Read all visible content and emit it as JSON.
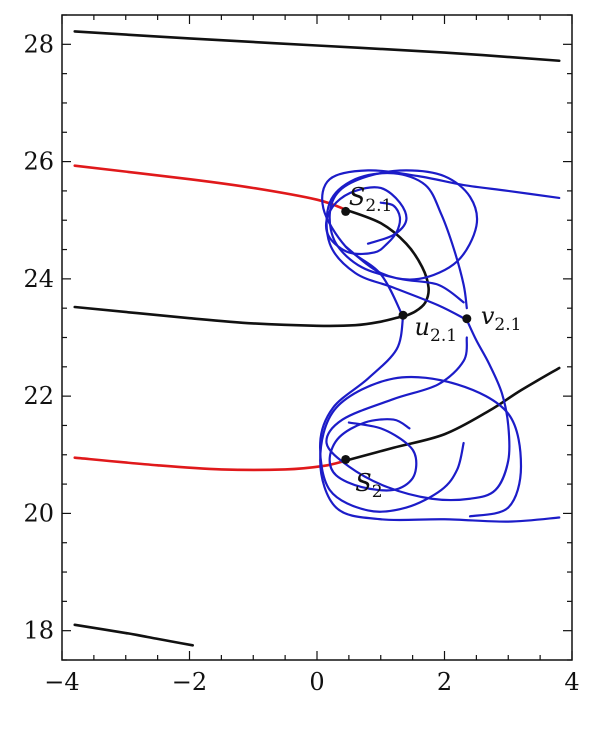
{
  "chart_data": {
    "type": "line",
    "title": "",
    "xlabel": "",
    "ylabel": "",
    "xlim": [
      -4,
      4
    ],
    "ylim": [
      17.5,
      28.5
    ],
    "xticks": [
      -4,
      -2,
      0,
      2,
      4
    ],
    "xtick_labels": [
      "−4",
      "−2",
      "0",
      "2",
      "4"
    ],
    "yticks": [
      18,
      20,
      22,
      24,
      26,
      28
    ],
    "ytick_labels": [
      "18",
      "20",
      "22",
      "24",
      "26",
      "28"
    ],
    "minor_ticks": true,
    "grid": false,
    "legend": "none",
    "colors": {
      "black": "#111111",
      "red": "#e0191b",
      "blue": "#1c1cc8"
    },
    "series": [
      {
        "color": "black",
        "x": [
          -3.8,
          -2,
          0,
          2,
          3.8
        ],
        "y": [
          28.22,
          28.1,
          27.98,
          27.86,
          27.72
        ]
      },
      {
        "color": "black",
        "x": [
          -3.8,
          -3,
          -2.5,
          -2.3,
          -1.95
        ],
        "y": [
          18.1,
          17.96,
          17.86,
          17.82,
          17.75
        ]
      },
      {
        "color": "black",
        "x": [
          -3.8,
          -2,
          -1,
          0,
          0.6,
          1,
          1.3
        ],
        "y": [
          23.52,
          23.33,
          23.24,
          23.2,
          23.21,
          23.27,
          23.35
        ]
      },
      {
        "color": "red",
        "x": [
          -3.8,
          -2,
          -1,
          0,
          0.45
        ],
        "y": [
          25.93,
          25.7,
          25.55,
          25.35,
          25.18
        ]
      },
      {
        "color": "black",
        "x": [
          0.45,
          1,
          1.4,
          1.65,
          1.75,
          1.7,
          1.55,
          1.35
        ],
        "y": [
          25.18,
          24.95,
          24.6,
          24.2,
          23.85,
          23.6,
          23.45,
          23.35
        ]
      },
      {
        "color": "red",
        "x": [
          -3.8,
          -2.5,
          -1.5,
          -0.5,
          0.1,
          0.45
        ],
        "y": [
          20.95,
          20.82,
          20.75,
          20.75,
          20.81,
          20.9
        ]
      },
      {
        "color": "black",
        "x": [
          0.45,
          1.2,
          2,
          2.7,
          3.2,
          3.8
        ],
        "y": [
          20.9,
          21.12,
          21.35,
          21.75,
          22.1,
          22.48
        ]
      },
      {
        "color": "blue",
        "x": [
          1.35,
          1,
          0.45,
          0.1,
          0.2,
          0.8,
          1.6,
          2.3,
          3,
          3.8
        ],
        "y": [
          23.35,
          24.08,
          24.55,
          25.2,
          25.7,
          25.85,
          25.75,
          25.6,
          25.5,
          25.38
        ]
      },
      {
        "color": "blue",
        "x": [
          1.35,
          1.25,
          0.8,
          0.25,
          0.05,
          0.2,
          0.8,
          1.4,
          1.95,
          2.2,
          2.3
        ],
        "y": [
          23.35,
          22.8,
          22.3,
          21.8,
          21.2,
          20.4,
          20.05,
          20.1,
          20.4,
          20.75,
          21.2
        ]
      },
      {
        "color": "blue",
        "x": [
          3.8,
          3,
          2,
          1,
          0.3,
          0.05,
          0.3,
          1.2,
          2.2,
          3,
          3.2,
          3,
          2.4
        ],
        "y": [
          19.93,
          19.86,
          19.9,
          19.9,
          20.1,
          20.9,
          21.8,
          22.3,
          22.2,
          21.7,
          20.8,
          20.1,
          19.95
        ]
      },
      {
        "color": "blue",
        "x": [
          2.35,
          2.5,
          2.7,
          2.9,
          3.0,
          3.0,
          2.8,
          2.4,
          1.8,
          1.1,
          0.5,
          0.15,
          0.4,
          1.2,
          1.9,
          2.3,
          2.35
        ],
        "y": [
          23.3,
          22.95,
          22.55,
          22.05,
          21.5,
          20.9,
          20.4,
          20.25,
          20.25,
          20.45,
          20.8,
          21.2,
          21.6,
          21.95,
          22.2,
          22.6,
          23.0
        ]
      },
      {
        "color": "blue",
        "x": [
          2.35,
          1.9,
          1.2,
          0.6,
          0.2,
          0.2,
          0.6,
          1.2,
          1.7,
          1.95,
          2.15,
          2.3,
          2.35
        ],
        "y": [
          23.3,
          23.55,
          23.85,
          24.1,
          24.6,
          25.3,
          25.7,
          25.8,
          25.6,
          25.1,
          24.5,
          23.9,
          23.5
        ]
      },
      {
        "color": "blue",
        "x": [
          0.45,
          1.0,
          1.6,
          2.2,
          2.5,
          2.4,
          2.0,
          1.4,
          0.8,
          0.35,
          0.2,
          0.3,
          0.7,
          1.3,
          1.9,
          2.3
        ],
        "y": [
          24.55,
          24.1,
          24.0,
          24.3,
          24.9,
          25.4,
          25.75,
          25.85,
          25.75,
          25.5,
          25.1,
          24.6,
          24.2,
          24.0,
          23.9,
          23.6
        ]
      },
      {
        "color": "blue",
        "x": [
          0.8,
          1.2,
          1.4,
          1.3,
          1.0,
          0.6,
          0.3,
          0.15,
          0.2,
          0.5,
          0.9,
          1.1,
          1.25,
          1.3,
          1.2,
          1.0
        ],
        "y": [
          24.6,
          24.75,
          25.0,
          25.3,
          25.55,
          25.5,
          25.3,
          25.0,
          24.7,
          24.45,
          24.45,
          24.6,
          24.8,
          25.05,
          25.25,
          25.3
        ]
      },
      {
        "color": "blue",
        "x": [
          0.5,
          1.0,
          1.4,
          1.55,
          1.5,
          1.2,
          0.7,
          0.3,
          0.2,
          0.35,
          0.75,
          1.2,
          1.45
        ],
        "y": [
          21.55,
          21.45,
          21.2,
          20.95,
          20.6,
          20.4,
          20.45,
          20.65,
          20.95,
          21.3,
          21.55,
          21.6,
          21.45
        ]
      }
    ],
    "points": [
      {
        "name": "S",
        "sub": "2.1",
        "x": 0.45,
        "y": 25.15,
        "label_dx": 0.05,
        "label_dy": 0.25
      },
      {
        "name": "u",
        "sub": "2.1",
        "x": 1.35,
        "y": 23.38,
        "label_dx": 0.18,
        "label_dy": -0.2
      },
      {
        "name": "v",
        "sub": "2.1",
        "x": 2.35,
        "y": 23.32,
        "label_dx": 0.22,
        "label_dy": 0.05
      },
      {
        "name": "S",
        "sub": "2",
        "x": 0.45,
        "y": 20.92,
        "label_dx": 0.15,
        "label_dy": -0.4
      }
    ]
  }
}
